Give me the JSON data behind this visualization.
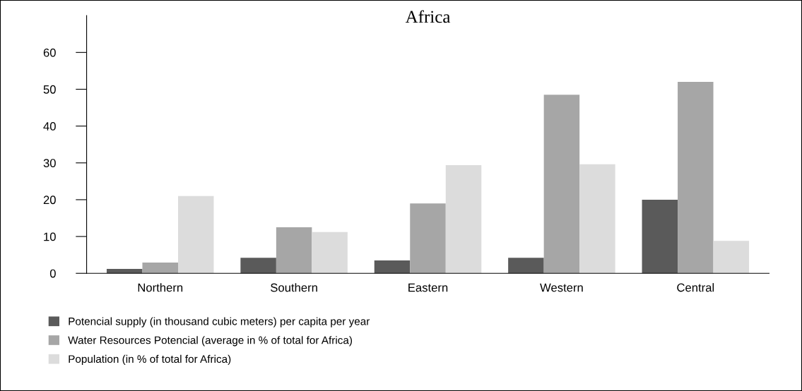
{
  "chart_data": {
    "type": "bar",
    "title": "Africa",
    "categories": [
      "Northern",
      "Southern",
      "Eastern",
      "Western",
      "Central"
    ],
    "series": [
      {
        "name": "Potencial supply (in thousand cubic meters) per capita per year",
        "color": "#5a5a5a",
        "values": [
          1.2,
          4.2,
          3.5,
          4.2,
          20
        ]
      },
      {
        "name": "Water Resources Potencial (average in % of total for Africa)",
        "color": "#a6a6a6",
        "values": [
          2.9,
          12.5,
          19,
          48.5,
          52
        ]
      },
      {
        "name": "Population (in % of total for Africa)",
        "color": "#dcdcdc",
        "values": [
          21,
          11.2,
          29.4,
          29.6,
          8.8
        ]
      }
    ],
    "ylim": [
      0,
      70
    ],
    "yticks": [
      0,
      10,
      20,
      30,
      40,
      50,
      60
    ],
    "grid": false,
    "legend": "bottom left"
  }
}
